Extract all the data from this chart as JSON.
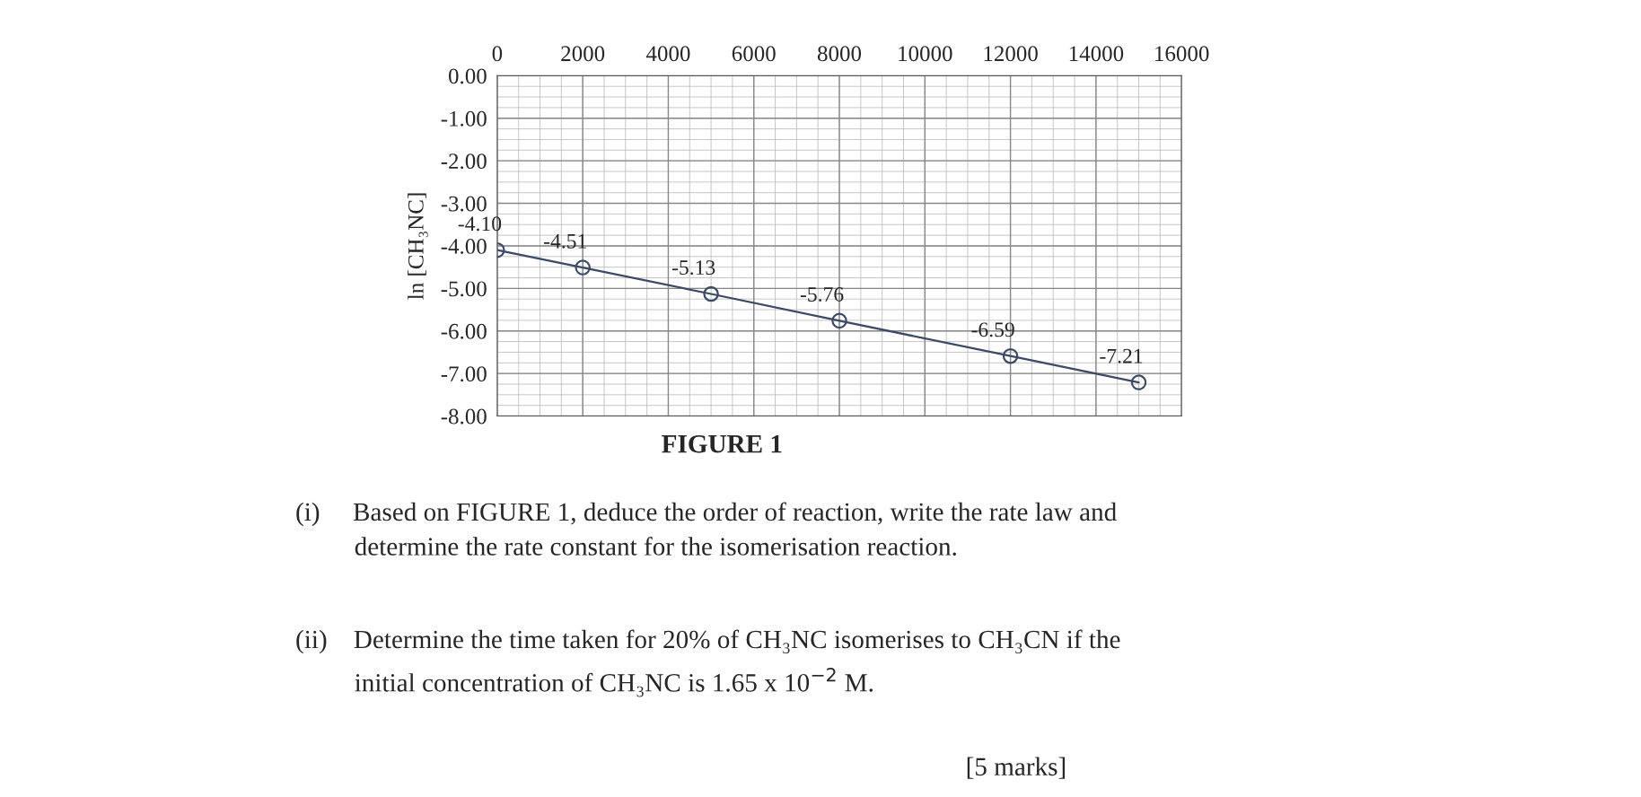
{
  "chart_data": {
    "type": "line",
    "x": [
      0,
      2000,
      5000,
      8000,
      12000,
      15000
    ],
    "series": [
      {
        "color": "#3a4a6a",
        "values": [
          -4.1,
          -4.51,
          -5.13,
          -5.76,
          -6.59,
          -7.21
        ]
      }
    ],
    "value_labels": [
      "-4.10",
      "-4.51",
      "-5.13",
      "-5.76",
      "-6.59",
      "-7.21"
    ],
    "marker": "circle",
    "line_style": "solid",
    "ylabel": "ln [CH₃NC]",
    "xlim": [
      0,
      16000
    ],
    "xticks": [
      0,
      2000,
      4000,
      6000,
      8000,
      10000,
      12000,
      14000,
      16000
    ],
    "ylim": [
      -8,
      0
    ],
    "yticks": [
      {
        "value": 0,
        "label": "0.00"
      },
      {
        "value": -1,
        "label": "-1.00"
      },
      {
        "value": -2,
        "label": "-2.00"
      },
      {
        "value": -3,
        "label": "-3.00"
      },
      {
        "value": -4,
        "label": "-4.00"
      },
      {
        "value": -5,
        "label": "-5.00"
      },
      {
        "value": -6,
        "label": "-6.00"
      },
      {
        "value": -7,
        "label": "-7.00"
      },
      {
        "value": -8,
        "label": "-8.00"
      }
    ],
    "grid": true,
    "annotations": [
      "FIGURE 1",
      "(i)     Based on FIGURE 1, deduce the order of reaction, write the rate law and\n         determine the rate constant for the isomerisation reaction.",
      "(ii)    Determine the time taken for 20% of CH₃NC isomerises to CH₃CN if the\n         initial concentration of CH₃NC is 1.65 x 10$^{−2}$ M.",
      "[5 marks]"
    ]
  }
}
